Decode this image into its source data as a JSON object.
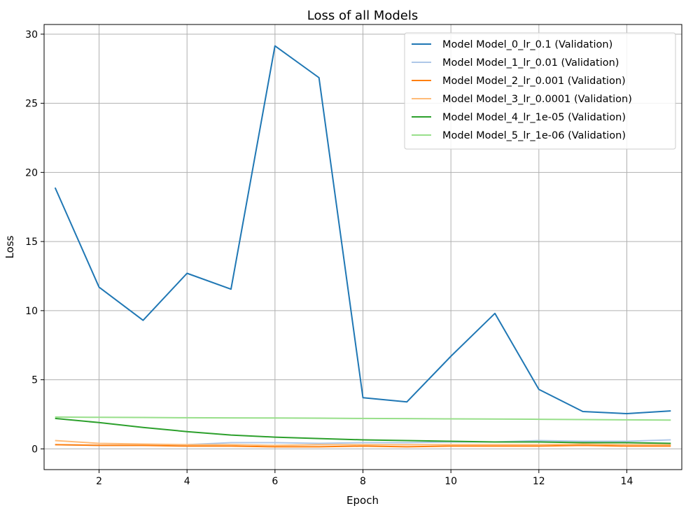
{
  "chart_data": {
    "type": "line",
    "title": "Loss of all Models",
    "xlabel": "Epoch",
    "ylabel": "Loss",
    "xlim": [
      0.75,
      15.25
    ],
    "ylim": [
      -1.5,
      30.7
    ],
    "xticks": [
      2,
      4,
      6,
      8,
      10,
      12,
      14
    ],
    "yticks": [
      0,
      5,
      10,
      15,
      20,
      25,
      30
    ],
    "grid": true,
    "legend_position": "top-right",
    "x": [
      1,
      2,
      3,
      4,
      5,
      6,
      7,
      8,
      9,
      10,
      11,
      12,
      13,
      14,
      15
    ],
    "series": [
      {
        "name": "Model Model_0_lr_0.1 (Validation)",
        "color": "#1f77b4",
        "values": [
          18.9,
          11.7,
          9.3,
          12.7,
          11.55,
          29.15,
          26.85,
          3.7,
          3.4,
          6.7,
          9.8,
          4.3,
          2.7,
          2.55,
          2.75
        ]
      },
      {
        "name": "Model Model_1_lr_0.01 (Validation)",
        "color": "#aec7e8",
        "values": [
          0.3,
          0.25,
          0.25,
          0.3,
          0.45,
          0.45,
          0.4,
          0.45,
          0.45,
          0.5,
          0.5,
          0.6,
          0.55,
          0.55,
          0.65
        ]
      },
      {
        "name": "Model Model_2_lr_0.001 (Validation)",
        "color": "#ff7f0e",
        "values": [
          0.3,
          0.25,
          0.25,
          0.2,
          0.2,
          0.15,
          0.15,
          0.2,
          0.15,
          0.2,
          0.2,
          0.2,
          0.25,
          0.2,
          0.2
        ]
      },
      {
        "name": "Model Model_3_lr_0.0001 (Validation)",
        "color": "#ffbb78",
        "values": [
          0.6,
          0.4,
          0.35,
          0.3,
          0.3,
          0.25,
          0.3,
          0.3,
          0.3,
          0.3,
          0.3,
          0.3,
          0.35,
          0.3,
          0.3
        ]
      },
      {
        "name": "Model Model_4_lr_1e-05 (Validation)",
        "color": "#2ca02c",
        "values": [
          2.2,
          1.9,
          1.55,
          1.25,
          1.0,
          0.85,
          0.75,
          0.65,
          0.6,
          0.55,
          0.5,
          0.5,
          0.45,
          0.45,
          0.4
        ]
      },
      {
        "name": "Model Model_5_lr_1e-06 (Validation)",
        "color": "#98df8a",
        "values": [
          2.3,
          2.28,
          2.27,
          2.25,
          2.24,
          2.23,
          2.22,
          2.2,
          2.19,
          2.17,
          2.16,
          2.14,
          2.12,
          2.1,
          2.08
        ]
      }
    ]
  }
}
